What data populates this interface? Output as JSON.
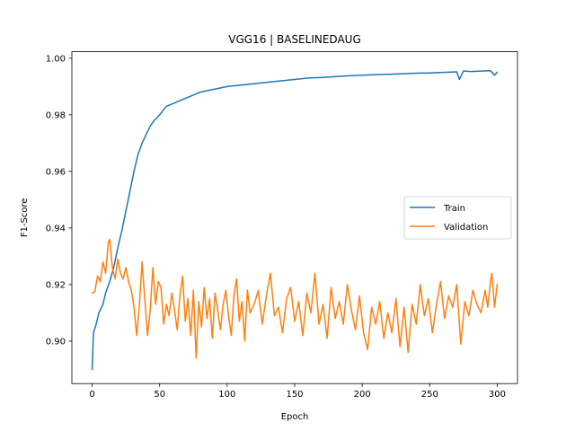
{
  "chart_data": {
    "type": "line",
    "title": "VGG16 | BASELINEDAUG",
    "xlabel": "Epoch",
    "ylabel": "F1-Score",
    "xlim": [
      -15,
      315
    ],
    "ylim": [
      0.885,
      1.0023
    ],
    "xticks": [
      0,
      50,
      100,
      150,
      200,
      250,
      300
    ],
    "yticks": [
      0.9,
      0.92,
      0.94,
      0.96,
      0.98,
      1.0
    ],
    "ytick_labels": [
      "0.90",
      "0.92",
      "0.94",
      "0.96",
      "0.98",
      "1.00"
    ],
    "grid": false,
    "legend": "center-right",
    "series": [
      {
        "name": "Train",
        "color": "#1f77b4",
        "points": [
          [
            0,
            0.89
          ],
          [
            1,
            0.903
          ],
          [
            3,
            0.906
          ],
          [
            5,
            0.91
          ],
          [
            8,
            0.913
          ],
          [
            10,
            0.917
          ],
          [
            13,
            0.921
          ],
          [
            16,
            0.926
          ],
          [
            19,
            0.933
          ],
          [
            22,
            0.939
          ],
          [
            25,
            0.946
          ],
          [
            28,
            0.953
          ],
          [
            31,
            0.96
          ],
          [
            34,
            0.966
          ],
          [
            37,
            0.97
          ],
          [
            40,
            0.973
          ],
          [
            43,
            0.976
          ],
          [
            46,
            0.978
          ],
          [
            50,
            0.98
          ],
          [
            55,
            0.983
          ],
          [
            60,
            0.984
          ],
          [
            65,
            0.985
          ],
          [
            70,
            0.986
          ],
          [
            75,
            0.987
          ],
          [
            80,
            0.988
          ],
          [
            90,
            0.989
          ],
          [
            100,
            0.99
          ],
          [
            110,
            0.9905
          ],
          [
            120,
            0.991
          ],
          [
            130,
            0.9915
          ],
          [
            140,
            0.992
          ],
          [
            150,
            0.9925
          ],
          [
            160,
            0.993
          ],
          [
            170,
            0.9932
          ],
          [
            180,
            0.9935
          ],
          [
            190,
            0.9938
          ],
          [
            200,
            0.994
          ],
          [
            210,
            0.9942
          ],
          [
            220,
            0.9943
          ],
          [
            230,
            0.9945
          ],
          [
            240,
            0.9947
          ],
          [
            250,
            0.9948
          ],
          [
            260,
            0.995
          ],
          [
            270,
            0.9952
          ],
          [
            272,
            0.9925
          ],
          [
            275,
            0.9955
          ],
          [
            280,
            0.9953
          ],
          [
            285,
            0.9954
          ],
          [
            290,
            0.9955
          ],
          [
            295,
            0.9956
          ],
          [
            298,
            0.994
          ],
          [
            300,
            0.995
          ]
        ]
      },
      {
        "name": "Validation",
        "color": "#ff7f0e",
        "points": [
          [
            0,
            0.917
          ],
          [
            2,
            0.9175
          ],
          [
            4,
            0.923
          ],
          [
            6,
            0.921
          ],
          [
            8,
            0.928
          ],
          [
            10,
            0.924
          ],
          [
            12,
            0.935
          ],
          [
            13,
            0.936
          ],
          [
            15,
            0.926
          ],
          [
            17,
            0.922
          ],
          [
            19,
            0.929
          ],
          [
            21,
            0.924
          ],
          [
            23,
            0.922
          ],
          [
            25,
            0.926
          ],
          [
            27,
            0.921
          ],
          [
            29,
            0.918
          ],
          [
            31,
            0.912
          ],
          [
            33,
            0.902
          ],
          [
            35,
            0.913
          ],
          [
            37,
            0.928
          ],
          [
            39,
            0.915
          ],
          [
            41,
            0.902
          ],
          [
            43,
            0.911
          ],
          [
            45,
            0.926
          ],
          [
            47,
            0.913
          ],
          [
            49,
            0.921
          ],
          [
            51,
            0.919
          ],
          [
            53,
            0.906
          ],
          [
            55,
            0.913
          ],
          [
            57,
            0.909
          ],
          [
            59,
            0.917
          ],
          [
            61,
            0.911
          ],
          [
            63,
            0.904
          ],
          [
            65,
            0.916
          ],
          [
            67,
            0.923
          ],
          [
            69,
            0.907
          ],
          [
            71,
            0.915
          ],
          [
            73,
            0.902
          ],
          [
            75,
            0.918
          ],
          [
            77,
            0.894
          ],
          [
            79,
            0.914
          ],
          [
            81,
            0.905
          ],
          [
            83,
            0.919
          ],
          [
            85,
            0.908
          ],
          [
            87,
            0.915
          ],
          [
            89,
            0.901
          ],
          [
            91,
            0.917
          ],
          [
            93,
            0.911
          ],
          [
            95,
            0.904
          ],
          [
            97,
            0.913
          ],
          [
            99,
            0.918
          ],
          [
            101,
            0.909
          ],
          [
            103,
            0.902
          ],
          [
            105,
            0.916
          ],
          [
            107,
            0.922
          ],
          [
            109,
            0.907
          ],
          [
            111,
            0.914
          ],
          [
            113,
            0.9
          ],
          [
            115,
            0.918
          ],
          [
            117,
            0.91
          ],
          [
            120,
            0.913
          ],
          [
            123,
            0.918
          ],
          [
            126,
            0.906
          ],
          [
            129,
            0.916
          ],
          [
            132,
            0.924
          ],
          [
            135,
            0.909
          ],
          [
            138,
            0.912
          ],
          [
            141,
            0.903
          ],
          [
            144,
            0.915
          ],
          [
            147,
            0.919
          ],
          [
            150,
            0.907
          ],
          [
            153,
            0.914
          ],
          [
            156,
            0.902
          ],
          [
            159,
            0.917
          ],
          [
            162,
            0.91
          ],
          [
            165,
            0.924
          ],
          [
            168,
            0.906
          ],
          [
            171,
            0.913
          ],
          [
            174,
            0.901
          ],
          [
            177,
            0.919
          ],
          [
            180,
            0.908
          ],
          [
            183,
            0.914
          ],
          [
            186,
            0.906
          ],
          [
            189,
            0.92
          ],
          [
            192,
            0.911
          ],
          [
            195,
            0.904
          ],
          [
            198,
            0.916
          ],
          [
            201,
            0.903
          ],
          [
            204,
            0.897
          ],
          [
            207,
            0.912
          ],
          [
            210,
            0.906
          ],
          [
            213,
            0.914
          ],
          [
            216,
            0.901
          ],
          [
            219,
            0.91
          ],
          [
            222,
            0.903
          ],
          [
            225,
            0.915
          ],
          [
            228,
            0.898
          ],
          [
            231,
            0.912
          ],
          [
            234,
            0.896
          ],
          [
            237,
            0.913
          ],
          [
            240,
            0.906
          ],
          [
            243,
            0.92
          ],
          [
            246,
            0.909
          ],
          [
            249,
            0.915
          ],
          [
            252,
            0.903
          ],
          [
            255,
            0.913
          ],
          [
            258,
            0.921
          ],
          [
            261,
            0.908
          ],
          [
            264,
            0.916
          ],
          [
            267,
            0.912
          ],
          [
            270,
            0.92
          ],
          [
            273,
            0.899
          ],
          [
            276,
            0.914
          ],
          [
            279,
            0.909
          ],
          [
            282,
            0.918
          ],
          [
            285,
            0.913
          ],
          [
            288,
            0.91
          ],
          [
            291,
            0.918
          ],
          [
            293,
            0.912
          ],
          [
            295,
            0.921
          ],
          [
            296,
            0.924
          ],
          [
            298,
            0.912
          ],
          [
            300,
            0.92
          ]
        ]
      }
    ]
  }
}
